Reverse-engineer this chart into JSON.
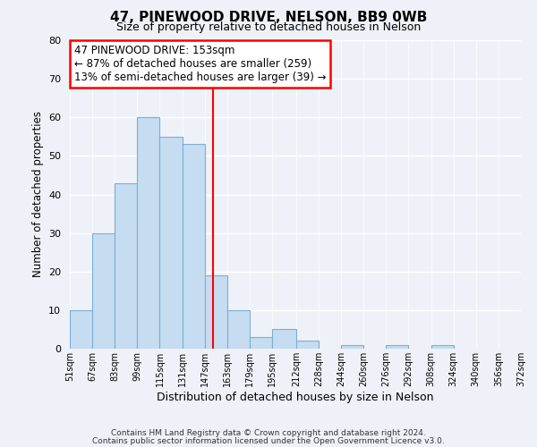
{
  "title": "47, PINEWOOD DRIVE, NELSON, BB9 0WB",
  "subtitle": "Size of property relative to detached houses in Nelson",
  "bar_values": [
    10,
    30,
    43,
    60,
    55,
    53,
    19,
    10,
    3,
    5,
    2,
    0,
    1,
    0,
    1,
    0,
    1,
    0,
    0,
    0
  ],
  "bin_labels": [
    "51sqm",
    "67sqm",
    "83sqm",
    "99sqm",
    "115sqm",
    "131sqm",
    "147sqm",
    "163sqm",
    "179sqm",
    "195sqm",
    "212sqm",
    "228sqm",
    "244sqm",
    "260sqm",
    "276sqm",
    "292sqm",
    "308sqm",
    "324sqm",
    "340sqm",
    "356sqm",
    "372sqm"
  ],
  "bar_color": "#c6dcf0",
  "bar_edge_color": "#7bafd4",
  "vline_x": 153,
  "vline_color": "red",
  "bin_edges": [
    51,
    67,
    83,
    99,
    115,
    131,
    147,
    163,
    179,
    195,
    212,
    228,
    244,
    260,
    276,
    292,
    308,
    324,
    340,
    356,
    372
  ],
  "ylabel": "Number of detached properties",
  "xlabel": "Distribution of detached houses by size in Nelson",
  "ylim": [
    0,
    80
  ],
  "yticks": [
    0,
    10,
    20,
    30,
    40,
    50,
    60,
    70,
    80
  ],
  "annotation_line1": "47 PINEWOOD DRIVE: 153sqm",
  "annotation_line2": "← 87% of detached houses are smaller (259)",
  "annotation_line3": "13% of semi-detached houses are larger (39) →",
  "footer1": "Contains HM Land Registry data © Crown copyright and database right 2024.",
  "footer2": "Contains public sector information licensed under the Open Government Licence v3.0.",
  "bg_color": "#eef2f8",
  "plot_bg_color": "#eef2f8",
  "grid_color": "white"
}
